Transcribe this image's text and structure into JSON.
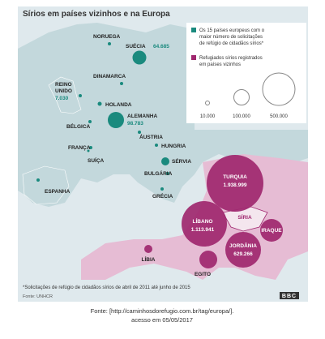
{
  "title": "Sírios em países vizinhos e na Europa",
  "legend": {
    "europe": [
      "Os 15 países europeus com o",
      "maior número de solicitações",
      "de refúgio de cidadãos sírios*"
    ],
    "neighbors": [
      "Refugiados sírios registrados",
      "em países vizinhos"
    ],
    "scale": [
      "10.000",
      "100.000",
      "500.000"
    ]
  },
  "europe": [
    {
      "label": "NORUEGA"
    },
    {
      "label": "SUÉCIA",
      "value": "64.685"
    },
    {
      "label": "DINAMARCA"
    },
    {
      "label": [
        "REINO",
        "UNIDO"
      ],
      "value": "7.030"
    },
    {
      "label": "HOLANDA"
    },
    {
      "label": "ALEMANHA",
      "value": "98.783"
    },
    {
      "label": "BÉLGICA"
    },
    {
      "label": "ÁUSTRIA"
    },
    {
      "label": "HUNGRIA"
    },
    {
      "label": "FRANÇA"
    },
    {
      "label": "SUÍÇA"
    },
    {
      "label": "SÉRVIA"
    },
    {
      "label": "BULGÁRIA"
    },
    {
      "label": "ESPANHA"
    },
    {
      "label": "GRÉCIA"
    }
  ],
  "neighbors": [
    {
      "label": "TURQUIA",
      "value": "1.938.999"
    },
    {
      "label": "LÍBANO",
      "value": "1.113.941"
    },
    {
      "label": "SÍRIA"
    },
    {
      "label": "IRAQUE"
    },
    {
      "label": "JORDÂNIA",
      "value": "629.266"
    },
    {
      "label": "LÍBIA"
    },
    {
      "label": "EGITO"
    }
  ],
  "footnote": "*Solicitações de refúgio de cidadãos sírios de abril de 2011 até junho de 2015",
  "source": "Fonte: UNHCR",
  "logo": "BBC",
  "caption": [
    "Fonte: [http://caminhosdorefugio.com.br/tag/europa/].",
    "acesso em 05/05/2017"
  ]
}
